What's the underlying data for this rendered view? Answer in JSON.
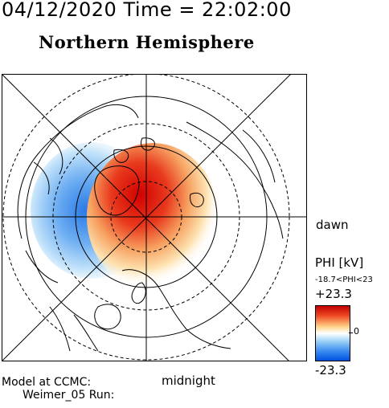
{
  "header": {
    "datetime": "04/12/2020 Time = 22:02:00",
    "title": "Northern Hemisphere"
  },
  "map": {
    "projection": "polar",
    "hemisphere": "northern",
    "latitude_rings": 5,
    "field": "PHI",
    "colors": {
      "positive_core": "#d80000",
      "positive_edge": "#ffd27a",
      "negative_core": "#2d7fe8",
      "negative_edge": "#bfe2fa",
      "background": "#ffffff",
      "lines": "#000000"
    }
  },
  "labels": {
    "dawn": "dawn",
    "midnight": "midnight"
  },
  "colorbar": {
    "title": "PHI [kV]",
    "range_text": "-18.7<PHI<23",
    "max_label": "+23.3",
    "min_label": "-23.3",
    "zero_label": "0",
    "max_value": 23.3,
    "min_value": -23.3
  },
  "footer": {
    "model_line1": "Model at CCMC:",
    "model_line2": "Weimer_05 Run:"
  }
}
